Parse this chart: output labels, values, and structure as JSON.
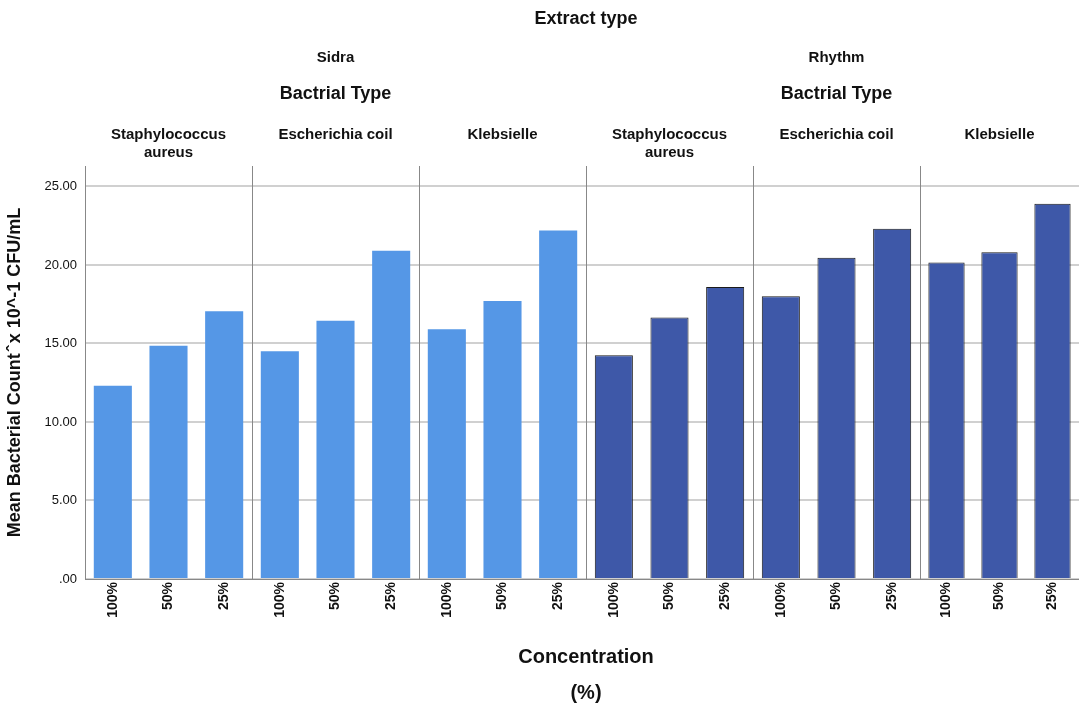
{
  "chart_data": [
    {
      "type": "bar",
      "title": "Staphylococcus aureus",
      "ylabel": "Mean Bacterial Count ̂ x 10^-1 CFU/mL",
      "annotations": [
        "Extract type",
        "Sidra",
        "Bactrial Type"
      ],
      "categories": [
        "100%",
        "50%",
        "25%"
      ],
      "values": [
        12.3,
        14.85,
        17.05
      ],
      "color": "#5597e6",
      "ylim": [
        0,
        26.3
      ],
      "yticks": [
        {
          "value": 0,
          "label": ".00"
        },
        {
          "value": 5,
          "label": "5.00"
        },
        {
          "value": 10,
          "label": "10.00"
        },
        {
          "value": 15,
          "label": "15.00"
        },
        {
          "value": 20,
          "label": "20.00"
        },
        {
          "value": 25,
          "label": "25.00"
        }
      ],
      "grid": "y"
    },
    {
      "type": "bar",
      "title": "Escherichia coil",
      "categories": [
        "100%",
        "50%",
        "25%"
      ],
      "values": [
        14.5,
        16.45,
        20.9
      ],
      "color": "#5597e6",
      "ylim": [
        0,
        26.3
      ],
      "yticks": [
        0,
        5,
        10,
        15,
        20,
        25
      ],
      "grid": "y",
      "tick_labels": "x"
    },
    {
      "type": "bar",
      "title": "Klebsielle",
      "categories": [
        "100%",
        "50%",
        "25%"
      ],
      "values": [
        15.9,
        17.7,
        22.2
      ],
      "color": "#5597e6",
      "ylim": [
        0,
        26.3
      ],
      "yticks": [
        0,
        5,
        10,
        15,
        20,
        25
      ],
      "grid": "y",
      "tick_labels": "x"
    },
    {
      "type": "bar",
      "title": "Staphylococcus aureus",
      "annotations": [
        "Rhythm",
        "Bactrial Type"
      ],
      "categories": [
        "100%",
        "50%",
        "25%"
      ],
      "values": [
        14.25,
        16.65,
        18.6
      ],
      "color": "#3e58a8",
      "ylim": [
        0,
        26.3
      ],
      "yticks": [
        0,
        5,
        10,
        15,
        20,
        25
      ],
      "grid": "y",
      "tick_labels": "x"
    },
    {
      "type": "bar",
      "title": "Escherichia coil",
      "categories": [
        "100%",
        "50%",
        "25%"
      ],
      "values": [
        18.0,
        20.45,
        22.3
      ],
      "color": "#3e58a8",
      "ylim": [
        0,
        26.3
      ],
      "yticks": [
        0,
        5,
        10,
        15,
        20,
        25
      ],
      "grid": "y",
      "tick_labels": "x"
    },
    {
      "type": "bar",
      "title": "Klebsielle",
      "categories": [
        "100%",
        "50%",
        "25%"
      ],
      "values": [
        20.15,
        20.8,
        23.9
      ],
      "color": "#3e58a8",
      "ylim": [
        0,
        26.3
      ],
      "yticks": [
        0,
        5,
        10,
        15,
        20,
        25
      ],
      "grid": "y",
      "tick_labels": "x"
    },
    {
      "type": "other",
      "annotations": [
        "Concentration (%)"
      ]
    }
  ]
}
